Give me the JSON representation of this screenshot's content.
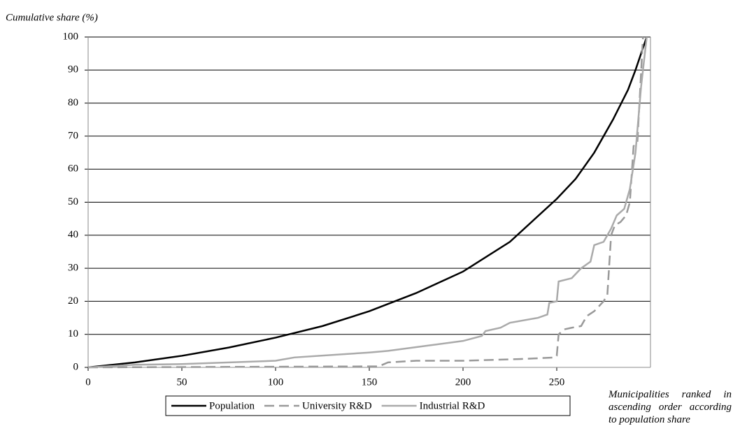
{
  "chart_data": {
    "type": "line",
    "y_label": "Cumulative share (%)",
    "x_label": "Municipalities ranked in ascending order according to population share",
    "xlim": [
      0,
      300
    ],
    "xticks": [
      0,
      50,
      100,
      150,
      200,
      250
    ],
    "ylim": [
      0,
      100
    ],
    "yticks": [
      0,
      10,
      20,
      30,
      40,
      50,
      60,
      70,
      80,
      90,
      100
    ],
    "grid": true,
    "series": [
      {
        "name": "Population",
        "color": "#000000",
        "dashed": false,
        "x": [
          0,
          25,
          50,
          75,
          100,
          125,
          150,
          175,
          200,
          225,
          250,
          260,
          270,
          280,
          288,
          292,
          295,
          298
        ],
        "values": [
          0,
          1.5,
          3.5,
          6,
          9,
          12.5,
          17,
          22.5,
          29,
          38,
          51,
          57,
          65,
          75,
          84,
          90,
          95,
          100
        ]
      },
      {
        "name": "University R&D",
        "color": "#999999",
        "dashed": true,
        "x": [
          0,
          155,
          160,
          175,
          200,
          230,
          249,
          250,
          251,
          254,
          258,
          263,
          266,
          270,
          275,
          277,
          279,
          281,
          284,
          287,
          289,
          291,
          293,
          296
        ],
        "values": [
          0,
          0.3,
          1.5,
          2,
          2,
          2.5,
          3,
          3.5,
          10,
          11.5,
          12,
          12.5,
          15.5,
          17,
          20,
          22,
          40,
          43,
          44,
          46,
          50,
          67,
          68,
          100
        ]
      },
      {
        "name": "Industrial R&D",
        "color": "#aaaaaa",
        "dashed": false,
        "x": [
          0,
          25,
          50,
          100,
          110,
          150,
          160,
          180,
          200,
          210,
          212,
          220,
          225,
          240,
          245,
          246,
          250,
          251,
          258,
          263,
          268,
          270,
          275,
          279,
          282,
          286,
          289,
          292,
          295,
          298
        ],
        "values": [
          0,
          0.8,
          1,
          2,
          3,
          4.5,
          5,
          6.5,
          8,
          9.5,
          11,
          12,
          13.5,
          15,
          16,
          19.5,
          20,
          26,
          27,
          30,
          32,
          37,
          38,
          42,
          46,
          48,
          54,
          65,
          85,
          100
        ]
      }
    ]
  }
}
